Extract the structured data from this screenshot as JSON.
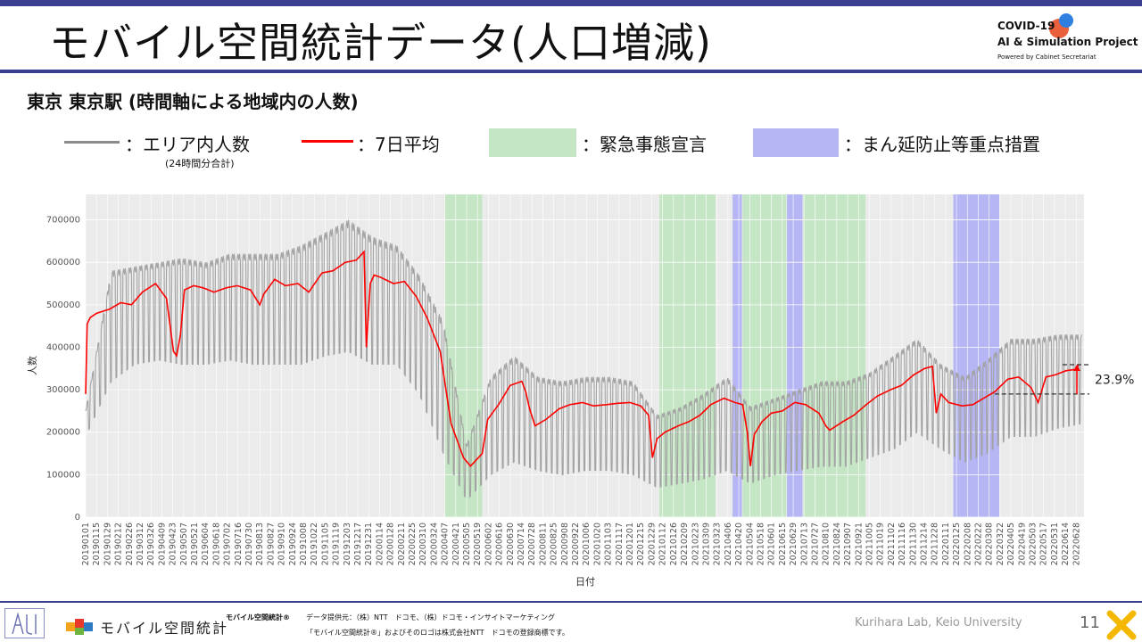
{
  "header": {
    "title": "モバイル空間統計データ(人口増減)",
    "logo_line1": "COVID-19",
    "logo_line2": "AI & Simulation Project",
    "logo_line3": "Powered by Cabinet Secretariat"
  },
  "subtitle": "東京 東京駅 (時間軸による地域内の人数)",
  "legend": {
    "raw_label": "：エリア内人数",
    "raw_sub": "(24時間分合計)",
    "avg_label": "：7日平均",
    "emergency_label": "：緊急事態宣言",
    "semi_label": "：まん延防止等重点措置"
  },
  "colors": {
    "raw": "#a3a3a3",
    "avg": "#ff0000",
    "emergency": "#c4e6c4",
    "semi": "#b6b6f5",
    "panel": "#ebebeb",
    "accent": "#3b3f8f"
  },
  "chart_data": {
    "type": "line",
    "title": "",
    "xlabel": "日付",
    "ylabel": "人数",
    "ylim": [
      0,
      760000
    ],
    "yticks": [
      "0",
      "100000",
      "200000",
      "300000",
      "400000",
      "500000",
      "600000",
      "700000"
    ],
    "xticks": [
      "20190101",
      "20190115",
      "20190129",
      "20190212",
      "20190226",
      "20190312",
      "20190326",
      "20190409",
      "20190423",
      "20190507",
      "20190521",
      "20190604",
      "20190618",
      "20190702",
      "20190716",
      "20190730",
      "20190813",
      "20190827",
      "20190910",
      "20190924",
      "20191008",
      "20191022",
      "20191105",
      "20191119",
      "20191203",
      "20191217",
      "20191231",
      "20200114",
      "20200128",
      "20200211",
      "20200225",
      "20200310",
      "20200324",
      "20200407",
      "20200421",
      "20200505",
      "20200519",
      "20200602",
      "20200616",
      "20200630",
      "20200714",
      "20200728",
      "20200811",
      "20200825",
      "20200908",
      "20200922",
      "20201006",
      "20201020",
      "20201103",
      "20201117",
      "20201201",
      "20201215",
      "20201229",
      "20210112",
      "20210126",
      "20210209",
      "20210223",
      "20210309",
      "20210323",
      "20210406",
      "20210420",
      "20210504",
      "20210518",
      "20210601",
      "20210615",
      "20210629",
      "20210713",
      "20210727",
      "20210810",
      "20210824",
      "20210907",
      "20210921",
      "20211005",
      "20211019",
      "20211102",
      "20211116",
      "20211130",
      "20211214",
      "20211228",
      "20220111",
      "20220125",
      "20220208",
      "20220222",
      "20220308",
      "20220322",
      "20220405",
      "20220419",
      "20220503",
      "20220517",
      "20220531",
      "20220614",
      "20220628"
    ],
    "x_start": "20190101",
    "x_end": "20220708",
    "emergency_periods": [
      [
        "20200407",
        "20200525"
      ],
      [
        "20210108",
        "20210321"
      ],
      [
        "20210425",
        "20210620"
      ],
      [
        "20210712",
        "20210930"
      ]
    ],
    "semi_periods": [
      [
        "20210412",
        "20210424"
      ],
      [
        "20210621",
        "20210711"
      ],
      [
        "20220121",
        "20220321"
      ]
    ],
    "avg_series": {
      "name": "7日平均",
      "x": [
        "20190101",
        "20190103",
        "20190107",
        "20190115",
        "20190201",
        "20190215",
        "20190301",
        "20190315",
        "20190401",
        "20190415",
        "20190424",
        "20190428",
        "20190503",
        "20190508",
        "20190520",
        "20190601",
        "20190615",
        "20190701",
        "20190715",
        "20190801",
        "20190813",
        "20190818",
        "20190901",
        "20190915",
        "20191001",
        "20191015",
        "20191101",
        "20191115",
        "20191201",
        "20191215",
        "20191225",
        "20191228",
        "20200102",
        "20200107",
        "20200115",
        "20200201",
        "20200215",
        "20200301",
        "20200315",
        "20200401",
        "20200415",
        "20200501",
        "20200510",
        "20200525",
        "20200601",
        "20200615",
        "20200630",
        "20200715",
        "20200720",
        "20200725",
        "20200801",
        "20200815",
        "20200901",
        "20200915",
        "20201001",
        "20201015",
        "20201101",
        "20201115",
        "20201201",
        "20201215",
        "20201225",
        "20201230",
        "20210105",
        "20210115",
        "20210201",
        "20210215",
        "20210301",
        "20210315",
        "20210401",
        "20210415",
        "20210425",
        "20210501",
        "20210505",
        "20210510",
        "20210520",
        "20210601",
        "20210615",
        "20210701",
        "20210715",
        "20210801",
        "20210810",
        "20210815",
        "20210901",
        "20210915",
        "20211001",
        "20211015",
        "20211101",
        "20211115",
        "20211201",
        "20211215",
        "20211225",
        "20211230",
        "20220105",
        "20220115",
        "20220201",
        "20220215",
        "20220301",
        "20220315",
        "20220401",
        "20220415",
        "20220501",
        "20220510",
        "20220520",
        "20220601",
        "20220615",
        "20220628",
        "20220701"
      ],
      "y": [
        290000,
        455000,
        470000,
        480000,
        490000,
        505000,
        500000,
        530000,
        550000,
        515000,
        390000,
        380000,
        430000,
        535000,
        545000,
        540000,
        530000,
        540000,
        545000,
        535000,
        500000,
        525000,
        560000,
        545000,
        550000,
        530000,
        575000,
        580000,
        600000,
        605000,
        625000,
        400000,
        550000,
        570000,
        565000,
        550000,
        555000,
        520000,
        470000,
        390000,
        220000,
        140000,
        120000,
        150000,
        230000,
        265000,
        310000,
        320000,
        295000,
        255000,
        215000,
        230000,
        255000,
        265000,
        270000,
        262000,
        265000,
        268000,
        270000,
        262000,
        240000,
        140000,
        185000,
        200000,
        215000,
        225000,
        240000,
        265000,
        280000,
        270000,
        265000,
        200000,
        120000,
        195000,
        225000,
        245000,
        250000,
        270000,
        265000,
        245000,
        215000,
        205000,
        225000,
        240000,
        265000,
        285000,
        300000,
        310000,
        335000,
        350000,
        355000,
        245000,
        290000,
        270000,
        262000,
        265000,
        280000,
        295000,
        325000,
        330000,
        305000,
        270000,
        330000,
        335000,
        345000,
        348000,
        360000
      ]
    },
    "raw_series": {
      "name": "エリア内人数",
      "x": [
        "20190101",
        "20190203",
        "20190305",
        "20190405",
        "20190505",
        "20190605",
        "20190705",
        "20190805",
        "20190905",
        "20191005",
        "20191105",
        "20191205",
        "20200105",
        "20200205",
        "20200305",
        "20200405",
        "20200505",
        "20200605",
        "20200705",
        "20200805",
        "20200905",
        "20201005",
        "20201105",
        "20201205",
        "20210105",
        "20210205",
        "20210305",
        "20210405",
        "20210505",
        "20210605",
        "20210705",
        "20210805",
        "20210905",
        "20211005",
        "20211105",
        "20211205",
        "20220105",
        "20220205",
        "20220305",
        "20220405",
        "20220505",
        "20220605",
        "20220705"
      ],
      "high": [
        250000,
        580000,
        590000,
        600000,
        610000,
        600000,
        620000,
        620000,
        620000,
        640000,
        670000,
        700000,
        660000,
        640000,
        570000,
        460000,
        170000,
        330000,
        380000,
        330000,
        320000,
        330000,
        330000,
        320000,
        240000,
        260000,
        290000,
        330000,
        260000,
        280000,
        300000,
        320000,
        320000,
        340000,
        380000,
        420000,
        360000,
        330000,
        370000,
        420000,
        420000,
        430000,
        430000
      ],
      "low": [
        190000,
        320000,
        360000,
        370000,
        360000,
        360000,
        370000,
        360000,
        360000,
        360000,
        380000,
        390000,
        360000,
        360000,
        290000,
        150000,
        40000,
        100000,
        130000,
        110000,
        100000,
        110000,
        110000,
        100000,
        70000,
        80000,
        90000,
        110000,
        80000,
        100000,
        110000,
        120000,
        120000,
        140000,
        160000,
        200000,
        160000,
        130000,
        150000,
        190000,
        190000,
        210000,
        220000
      ]
    },
    "annotation": {
      "label": "23.9%",
      "from_value": 290000,
      "to_value": 359000,
      "start_date": "20220315"
    }
  },
  "footer": {
    "brand": "モバイル空間統計",
    "brand_small": "モバイル空間統計®",
    "source": "データ提供元：（株）NTT　ドコモ、（株）ドコモ・インサイトマーケティング",
    "trademark": "「モバイル空間統計®」およびそのロゴは株式会社NTT　ドコモの登録商標です。",
    "lab": "Kurihara Lab, Keio University",
    "page": "11"
  }
}
